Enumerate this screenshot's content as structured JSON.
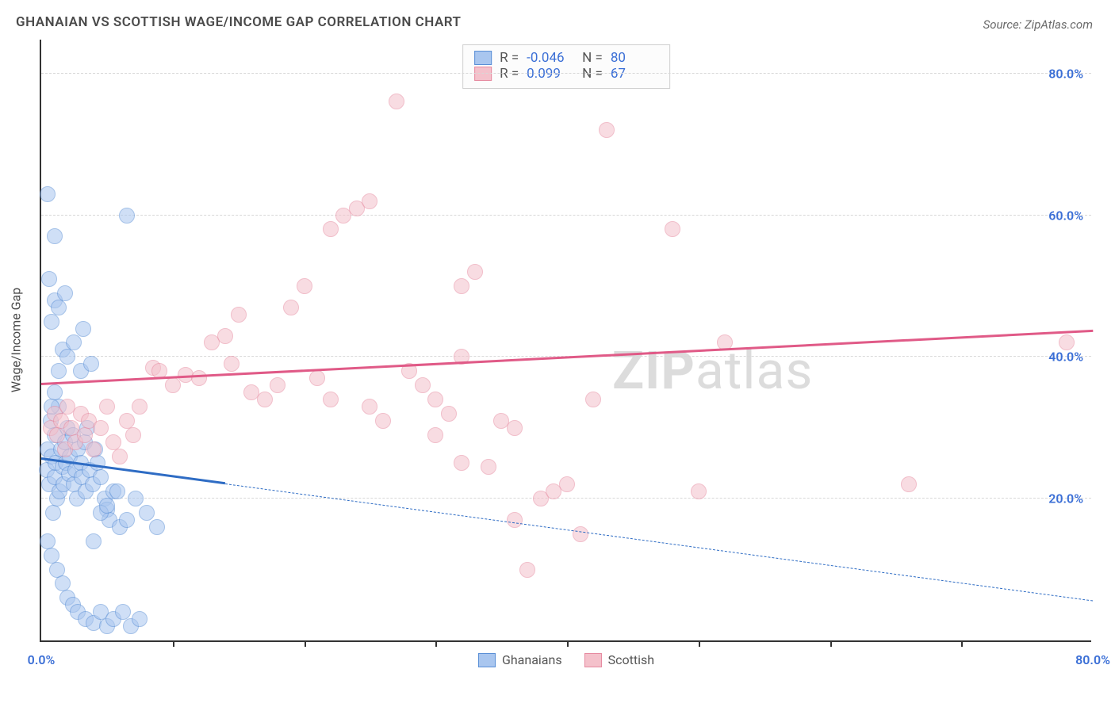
{
  "title": "GHANAIAN VS SCOTTISH WAGE/INCOME GAP CORRELATION CHART",
  "source": "Source: ZipAtlas.com",
  "ylabel": "Wage/Income Gap",
  "watermark_bold": "ZIP",
  "watermark_rest": "atlas",
  "chart": {
    "type": "scatter",
    "background_color": "#ffffff",
    "grid_color": "#d8d8d8",
    "axis_color": "#333333",
    "tick_label_color": "#3b6fd6",
    "label_color": "#4a4a4a",
    "xlim": [
      0,
      80
    ],
    "ylim": [
      0,
      85
    ],
    "ytick_step": 20,
    "ytick_format_suffix": "%",
    "xtick_labels": [
      {
        "x": 0.0,
        "label": "0.0%"
      },
      {
        "x": 80.0,
        "label": "80.0%"
      }
    ],
    "xtick_minor": [
      10,
      20,
      30,
      40,
      50,
      60,
      70
    ],
    "marker_radius": 10,
    "marker_opacity": 0.55,
    "series": [
      {
        "name": "Ghanaians",
        "fill": "#a9c6ef",
        "stroke": "#5a8fd6",
        "r_label": "R =",
        "r_value": "-0.046",
        "n_label": "N =",
        "n_value": "80",
        "trend": {
          "color": "#2e6cc4",
          "width": 3,
          "solid_x_end": 14,
          "y_at_x0": 25.5,
          "y_at_x80": 5.5,
          "dash_after_solid": true
        },
        "points": [
          [
            0.4,
            24
          ],
          [
            0.5,
            27
          ],
          [
            0.6,
            22
          ],
          [
            0.7,
            31
          ],
          [
            0.8,
            26
          ],
          [
            0.9,
            18
          ],
          [
            1.0,
            29
          ],
          [
            1.0,
            23
          ],
          [
            1.1,
            25
          ],
          [
            1.2,
            20
          ],
          [
            1.3,
            33
          ],
          [
            1.4,
            21
          ],
          [
            1.5,
            27
          ],
          [
            1.6,
            24.5
          ],
          [
            1.7,
            22
          ],
          [
            1.8,
            28
          ],
          [
            1.9,
            25
          ],
          [
            2.0,
            30
          ],
          [
            2.1,
            23.5
          ],
          [
            2.2,
            26
          ],
          [
            2.4,
            29
          ],
          [
            2.5,
            22
          ],
          [
            2.6,
            24
          ],
          [
            2.7,
            20
          ],
          [
            2.8,
            27
          ],
          [
            3.0,
            25
          ],
          [
            3.1,
            23
          ],
          [
            3.3,
            28
          ],
          [
            3.4,
            21
          ],
          [
            3.5,
            30
          ],
          [
            3.7,
            24
          ],
          [
            3.9,
            22
          ],
          [
            4.1,
            27
          ],
          [
            4.3,
            25
          ],
          [
            4.5,
            23
          ],
          [
            4.8,
            20
          ],
          [
            5.0,
            18.5
          ],
          [
            5.2,
            17
          ],
          [
            5.5,
            21
          ],
          [
            6.0,
            16
          ],
          [
            1.0,
            35
          ],
          [
            1.3,
            38
          ],
          [
            1.6,
            41
          ],
          [
            2.0,
            40
          ],
          [
            2.5,
            42
          ],
          [
            3.0,
            38
          ],
          [
            0.8,
            45
          ],
          [
            1.0,
            48
          ],
          [
            1.3,
            47
          ],
          [
            0.6,
            51
          ],
          [
            1.8,
            49
          ],
          [
            1.0,
            57
          ],
          [
            0.5,
            63
          ],
          [
            6.5,
            60
          ],
          [
            3.2,
            44
          ],
          [
            3.8,
            39
          ],
          [
            0.5,
            14
          ],
          [
            0.8,
            12
          ],
          [
            1.2,
            10
          ],
          [
            1.6,
            8
          ],
          [
            2.0,
            6
          ],
          [
            2.4,
            5
          ],
          [
            2.8,
            4
          ],
          [
            3.4,
            3
          ],
          [
            4.0,
            2.5
          ],
          [
            4.5,
            4
          ],
          [
            5.0,
            2
          ],
          [
            5.5,
            3
          ],
          [
            6.2,
            4
          ],
          [
            6.8,
            2
          ],
          [
            7.5,
            3
          ],
          [
            4.0,
            14
          ],
          [
            4.5,
            18
          ],
          [
            5.0,
            19
          ],
          [
            5.8,
            21
          ],
          [
            6.5,
            17
          ],
          [
            7.2,
            20
          ],
          [
            8.0,
            18
          ],
          [
            8.8,
            16
          ],
          [
            0.8,
            33
          ]
        ]
      },
      {
        "name": "Scottish",
        "fill": "#f4c1cb",
        "stroke": "#e68aa0",
        "r_label": "R =",
        "r_value": "0.099",
        "n_label": "N =",
        "n_value": "67",
        "trend": {
          "color": "#e05a87",
          "width": 3,
          "solid_x_end": 80,
          "y_at_x0": 36.0,
          "y_at_x80": 43.5,
          "dash_after_solid": false
        },
        "points": [
          [
            0.7,
            30
          ],
          [
            1.0,
            32
          ],
          [
            1.2,
            29
          ],
          [
            1.5,
            31
          ],
          [
            1.8,
            27
          ],
          [
            2.0,
            33
          ],
          [
            2.3,
            30
          ],
          [
            2.6,
            28
          ],
          [
            3.0,
            32
          ],
          [
            3.3,
            29
          ],
          [
            3.6,
            31
          ],
          [
            4.0,
            27
          ],
          [
            4.5,
            30
          ],
          [
            5.0,
            33
          ],
          [
            5.5,
            28
          ],
          [
            6.0,
            26
          ],
          [
            6.5,
            31
          ],
          [
            7.0,
            29
          ],
          [
            7.5,
            33
          ],
          [
            8.5,
            38.5
          ],
          [
            9.0,
            38
          ],
          [
            10,
            36
          ],
          [
            11,
            37.5
          ],
          [
            12,
            37
          ],
          [
            13,
            42
          ],
          [
            14,
            43
          ],
          [
            14.5,
            39
          ],
          [
            15,
            46
          ],
          [
            16,
            35
          ],
          [
            17,
            34
          ],
          [
            18,
            36
          ],
          [
            19,
            47
          ],
          [
            20,
            50
          ],
          [
            21,
            37
          ],
          [
            22,
            34
          ],
          [
            22,
            58
          ],
          [
            23,
            60
          ],
          [
            24,
            61
          ],
          [
            25,
            62
          ],
          [
            25,
            33
          ],
          [
            26,
            31
          ],
          [
            27,
            76
          ],
          [
            28,
            38
          ],
          [
            29,
            36
          ],
          [
            30,
            29
          ],
          [
            30,
            34
          ],
          [
            31,
            32
          ],
          [
            32,
            40
          ],
          [
            32,
            50
          ],
          [
            32,
            25
          ],
          [
            33,
            52
          ],
          [
            34,
            24.5
          ],
          [
            35,
            31
          ],
          [
            36,
            17
          ],
          [
            36,
            30
          ],
          [
            37,
            10
          ],
          [
            38,
            20
          ],
          [
            39,
            21
          ],
          [
            40,
            22
          ],
          [
            41,
            15
          ],
          [
            42,
            34
          ],
          [
            43,
            72
          ],
          [
            48,
            58
          ],
          [
            50,
            21
          ],
          [
            52,
            42
          ],
          [
            66,
            22
          ],
          [
            78,
            42
          ]
        ]
      }
    ],
    "legend_bottom": [
      {
        "swatch_fill": "#a9c6ef",
        "swatch_stroke": "#5a8fd6",
        "label": "Ghanaians"
      },
      {
        "swatch_fill": "#f4c1cb",
        "swatch_stroke": "#e68aa0",
        "label": "Scottish"
      }
    ]
  }
}
